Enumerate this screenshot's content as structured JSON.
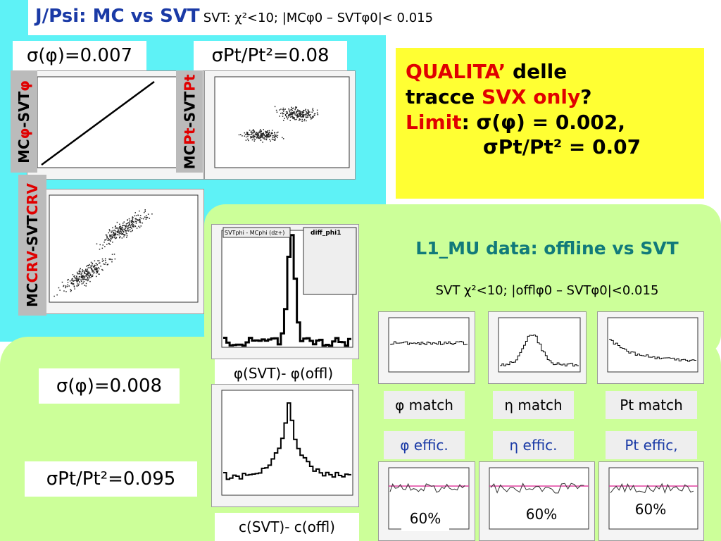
{
  "header": {
    "title": "J/Psi: MC vs SVT",
    "subtitle": "SVT: χ²<10; |MCφ0 – SVTφ0|< 0.015"
  },
  "mc": {
    "sigma_phi": "σ(φ)=0.007",
    "sigma_pt": "σPt/Pt²=0.08",
    "label_phi": [
      "MC",
      "φ",
      "-SVT",
      "φ"
    ],
    "label_pt": [
      "MC",
      "Pt",
      "-SVT",
      "Pt"
    ],
    "label_crv": [
      "MC",
      "CRV",
      "-SVT",
      "CRV"
    ]
  },
  "quality": {
    "line1": [
      "QUALITA’",
      "delle"
    ],
    "line2": [
      "tracce",
      "SVX only",
      "?"
    ],
    "line3": [
      "Limit",
      ": σ(φ) = 0.002,"
    ],
    "line4": "σPt/Pt² = 0.07"
  },
  "l1mu": {
    "title": "L1_MU data: offline vs SVT",
    "subtitle": "SVT χ²<10; |offlφ0 – SVTφ0|<0.015",
    "match": [
      "φ match",
      "η match",
      "Pt match"
    ],
    "effic": [
      "φ effic.",
      "η effic.",
      "Pt effic,"
    ],
    "eff_values": [
      "60%",
      "60%",
      "60%"
    ]
  },
  "residuals": {
    "phi_label": "φ(SVT)- φ(offl)",
    "c_label": "c(SVT)- c(offl)",
    "phi_plot_title": "SVTphi - MCphi (dz+)",
    "phi_hist_name": "diff_phi1"
  },
  "offline": {
    "sigma_phi": "σ(φ)=0.008",
    "sigma_pt": "σPt/Pt²=0.095"
  }
}
